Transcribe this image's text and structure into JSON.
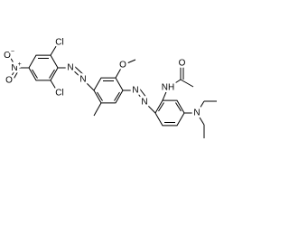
{
  "atoms": [
    {
      "label": "O",
      "charge": "−"
    },
    {
      "label": "N",
      "charge": "+"
    },
    {
      "label": "O"
    },
    {
      "label": "Cl"
    },
    {
      "label": "Cl"
    },
    {
      "label": "N"
    },
    {
      "label": "N"
    },
    {
      "label": "O"
    },
    {
      "label": "N"
    },
    {
      "label": "N"
    },
    {
      "label": "NH"
    },
    {
      "label": "O"
    },
    {
      "label": "N"
    }
  ]
}
